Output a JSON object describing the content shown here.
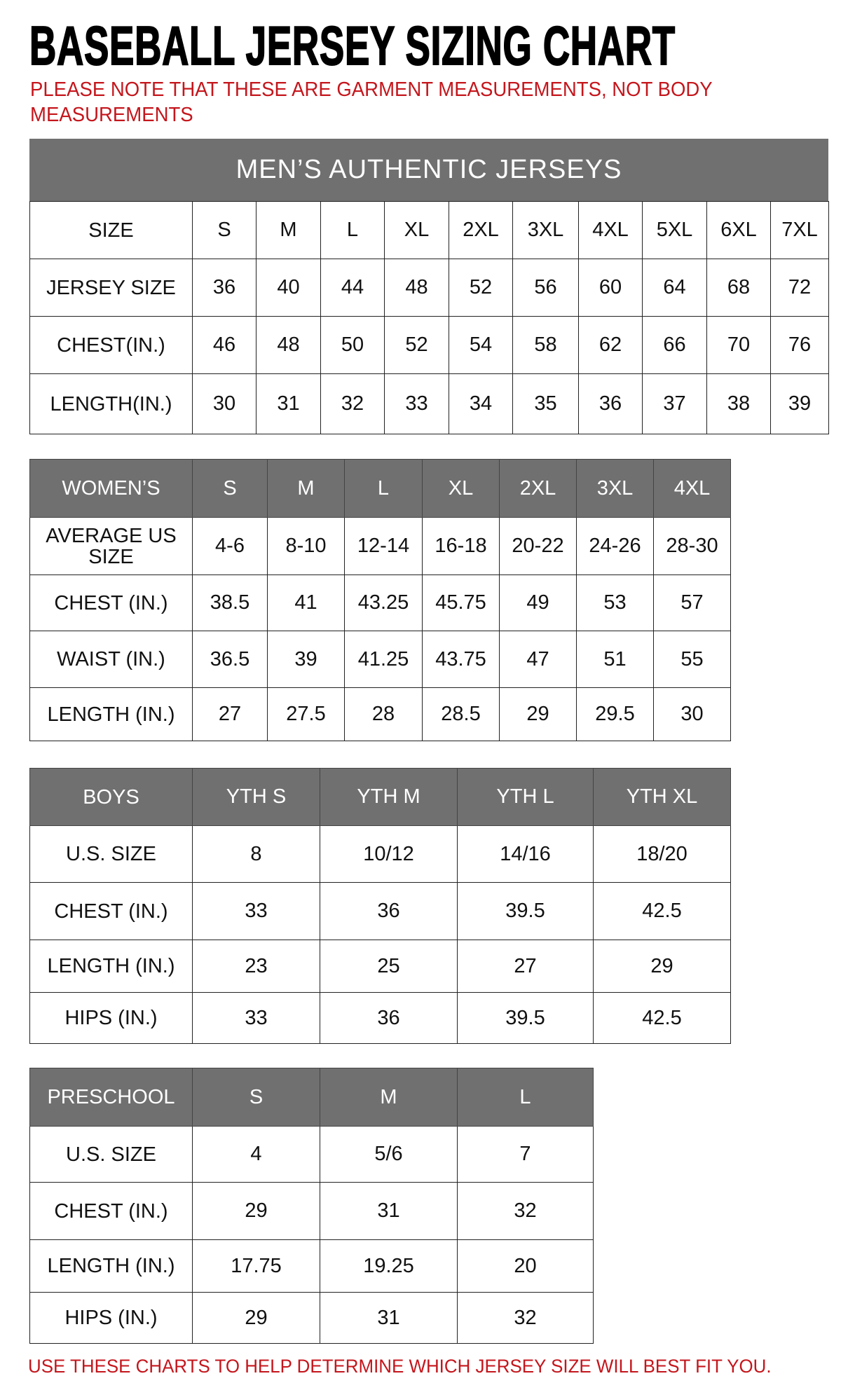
{
  "title": "BASEBALL JERSEY SIZING CHART",
  "note": "PLEASE NOTE THAT THESE ARE GARMENT MEASUREMENTS, NOT BODY MEASUREMENTS",
  "footer": "USE THESE CHARTS TO HELP DETERMINE WHICH JERSEY SIZE WILL BEST FIT YOU.",
  "colors": {
    "header_gray": "#707070",
    "note_red": "#c4161c"
  },
  "mens": {
    "title": "MEN’S AUTHENTIC JERSEYS",
    "header": [
      "SIZE",
      "S",
      "M",
      "L",
      "XL",
      "2XL",
      "3XL",
      "4XL",
      "5XL",
      "6XL",
      "7XL"
    ],
    "rows": [
      [
        "JERSEY SIZE",
        "36",
        "40",
        "44",
        "48",
        "52",
        "56",
        "60",
        "64",
        "68",
        "72"
      ],
      [
        "CHEST(IN.)",
        "46",
        "48",
        "50",
        "52",
        "54",
        "58",
        "62",
        "66",
        "70",
        "76"
      ],
      [
        "LENGTH(IN.)",
        "30",
        "31",
        "32",
        "33",
        "34",
        "35",
        "36",
        "37",
        "38",
        "39"
      ]
    ]
  },
  "womens": {
    "header": [
      "WOMEN’S",
      "S",
      "M",
      "L",
      "XL",
      "2XL",
      "3XL",
      "4XL"
    ],
    "rows": [
      [
        "AVERAGE US SIZE",
        "4-6",
        "8-10",
        "12-14",
        "16-18",
        "20-22",
        "24-26",
        "28-30"
      ],
      [
        "CHEST (IN.)",
        "38.5",
        "41",
        "43.25",
        "45.75",
        "49",
        "53",
        "57"
      ],
      [
        "WAIST (IN.)",
        "36.5",
        "39",
        "41.25",
        "43.75",
        "47",
        "51",
        "55"
      ],
      [
        "LENGTH (IN.)",
        "27",
        "27.5",
        "28",
        "28.5",
        "29",
        "29.5",
        "30"
      ]
    ]
  },
  "boys": {
    "header": [
      "BOYS",
      "YTH S",
      "YTH M",
      "YTH L",
      "YTH XL"
    ],
    "rows": [
      [
        "U.S. SIZE",
        "8",
        "10/12",
        "14/16",
        "18/20"
      ],
      [
        "CHEST (IN.)",
        "33",
        "36",
        "39.5",
        "42.5"
      ],
      [
        "LENGTH (IN.)",
        "23",
        "25",
        "27",
        "29"
      ],
      [
        "HIPS (IN.)",
        "33",
        "36",
        "39.5",
        "42.5"
      ]
    ]
  },
  "preschool": {
    "header": [
      "PRESCHOOL",
      "S",
      "M",
      "L"
    ],
    "rows": [
      [
        "U.S. SIZE",
        "4",
        "5/6",
        "7"
      ],
      [
        "CHEST (IN.)",
        "29",
        "31",
        "32"
      ],
      [
        "LENGTH (IN.)",
        "17.75",
        "19.25",
        "20"
      ],
      [
        "HIPS (IN.)",
        "29",
        "31",
        "32"
      ]
    ]
  }
}
